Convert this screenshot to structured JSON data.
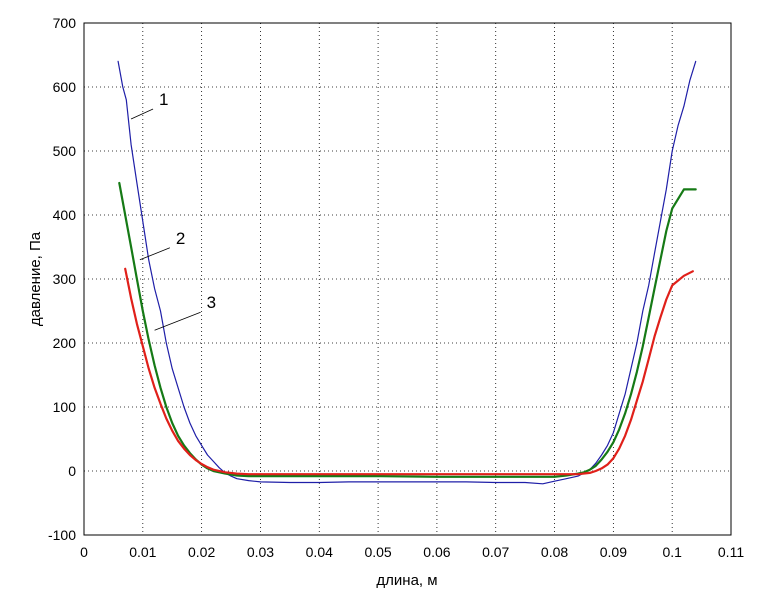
{
  "chart_data": {
    "type": "line",
    "title": "",
    "xlabel": "длина, м",
    "ylabel": "давление, Па",
    "xlim": [
      0,
      0.11
    ],
    "ylim": [
      -100,
      700
    ],
    "x_ticks": [
      "0",
      "0.01",
      "0.02",
      "0.03",
      "0.04",
      "0.05",
      "0.06",
      "0.07",
      "0.08",
      "0.09",
      "0.1",
      "0.11"
    ],
    "y_ticks": [
      "-100",
      "0",
      "100",
      "200",
      "300",
      "400",
      "500",
      "600",
      "700"
    ],
    "grid": true,
    "legend": "none",
    "series": [
      {
        "label": "1",
        "color": "#1f1fa8",
        "points": [
          [
            0.0058,
            640
          ],
          [
            0.0066,
            600
          ],
          [
            0.0072,
            580
          ],
          [
            0.008,
            510
          ],
          [
            0.009,
            450
          ],
          [
            0.01,
            390
          ],
          [
            0.011,
            330
          ],
          [
            0.012,
            285
          ],
          [
            0.013,
            250
          ],
          [
            0.014,
            200
          ],
          [
            0.015,
            160
          ],
          [
            0.016,
            130
          ],
          [
            0.017,
            100
          ],
          [
            0.018,
            75
          ],
          [
            0.019,
            55
          ],
          [
            0.02,
            40
          ],
          [
            0.021,
            25
          ],
          [
            0.022,
            15
          ],
          [
            0.023,
            5
          ],
          [
            0.024,
            -3
          ],
          [
            0.025,
            -8
          ],
          [
            0.026,
            -12
          ],
          [
            0.028,
            -15
          ],
          [
            0.03,
            -17
          ],
          [
            0.035,
            -18
          ],
          [
            0.04,
            -18
          ],
          [
            0.045,
            -17
          ],
          [
            0.05,
            -17
          ],
          [
            0.055,
            -17
          ],
          [
            0.06,
            -17
          ],
          [
            0.065,
            -17
          ],
          [
            0.07,
            -18
          ],
          [
            0.075,
            -18
          ],
          [
            0.078,
            -20
          ],
          [
            0.08,
            -16
          ],
          [
            0.082,
            -12
          ],
          [
            0.084,
            -8
          ],
          [
            0.085,
            -3
          ],
          [
            0.086,
            2
          ],
          [
            0.087,
            12
          ],
          [
            0.088,
            25
          ],
          [
            0.089,
            40
          ],
          [
            0.09,
            60
          ],
          [
            0.091,
            90
          ],
          [
            0.092,
            120
          ],
          [
            0.093,
            160
          ],
          [
            0.094,
            200
          ],
          [
            0.095,
            250
          ],
          [
            0.096,
            290
          ],
          [
            0.097,
            340
          ],
          [
            0.098,
            390
          ],
          [
            0.099,
            440
          ],
          [
            0.1,
            500
          ],
          [
            0.101,
            540
          ],
          [
            0.102,
            570
          ],
          [
            0.103,
            610
          ],
          [
            0.104,
            640
          ]
        ]
      },
      {
        "label": "2",
        "color": "#167a16",
        "points": [
          [
            0.006,
            450
          ],
          [
            0.007,
            400
          ],
          [
            0.008,
            350
          ],
          [
            0.009,
            300
          ],
          [
            0.01,
            250
          ],
          [
            0.011,
            205
          ],
          [
            0.012,
            165
          ],
          [
            0.013,
            130
          ],
          [
            0.014,
            100
          ],
          [
            0.015,
            75
          ],
          [
            0.016,
            55
          ],
          [
            0.017,
            40
          ],
          [
            0.018,
            28
          ],
          [
            0.019,
            18
          ],
          [
            0.02,
            10
          ],
          [
            0.021,
            4
          ],
          [
            0.022,
            0
          ],
          [
            0.024,
            -4
          ],
          [
            0.026,
            -7
          ],
          [
            0.028,
            -8
          ],
          [
            0.03,
            -8
          ],
          [
            0.04,
            -8
          ],
          [
            0.05,
            -8
          ],
          [
            0.06,
            -9
          ],
          [
            0.07,
            -9
          ],
          [
            0.08,
            -9
          ],
          [
            0.082,
            -7
          ],
          [
            0.084,
            -4
          ],
          [
            0.085,
            -2
          ],
          [
            0.086,
            2
          ],
          [
            0.087,
            8
          ],
          [
            0.088,
            18
          ],
          [
            0.089,
            30
          ],
          [
            0.09,
            45
          ],
          [
            0.091,
            65
          ],
          [
            0.092,
            90
          ],
          [
            0.093,
            120
          ],
          [
            0.094,
            155
          ],
          [
            0.095,
            195
          ],
          [
            0.096,
            240
          ],
          [
            0.097,
            285
          ],
          [
            0.098,
            330
          ],
          [
            0.099,
            375
          ],
          [
            0.1,
            410
          ],
          [
            0.102,
            440
          ],
          [
            0.104,
            440
          ]
        ]
      },
      {
        "label": "3",
        "color": "#e0201a",
        "points": [
          [
            0.007,
            316
          ],
          [
            0.008,
            270
          ],
          [
            0.009,
            230
          ],
          [
            0.01,
            195
          ],
          [
            0.011,
            160
          ],
          [
            0.012,
            130
          ],
          [
            0.013,
            105
          ],
          [
            0.014,
            82
          ],
          [
            0.015,
            63
          ],
          [
            0.016,
            47
          ],
          [
            0.017,
            35
          ],
          [
            0.018,
            25
          ],
          [
            0.019,
            17
          ],
          [
            0.02,
            11
          ],
          [
            0.021,
            6
          ],
          [
            0.022,
            2
          ],
          [
            0.024,
            -2
          ],
          [
            0.026,
            -4
          ],
          [
            0.028,
            -5
          ],
          [
            0.084,
            -5
          ],
          [
            0.086,
            -3
          ],
          [
            0.087,
            0
          ],
          [
            0.088,
            4
          ],
          [
            0.089,
            10
          ],
          [
            0.09,
            20
          ],
          [
            0.091,
            35
          ],
          [
            0.092,
            55
          ],
          [
            0.093,
            80
          ],
          [
            0.094,
            110
          ],
          [
            0.095,
            140
          ],
          [
            0.096,
            175
          ],
          [
            0.097,
            210
          ],
          [
            0.098,
            240
          ],
          [
            0.099,
            268
          ],
          [
            0.1,
            290
          ],
          [
            0.102,
            305
          ],
          [
            0.1035,
            312
          ]
        ]
      }
    ],
    "annotations": [
      {
        "text": "1",
        "series": 0,
        "at": [
          0.008,
          550
        ]
      },
      {
        "text": "2",
        "series": 1,
        "at": [
          0.0095,
          330
        ]
      },
      {
        "text": "3",
        "series": 2,
        "at": [
          0.012,
          220
        ]
      }
    ]
  }
}
